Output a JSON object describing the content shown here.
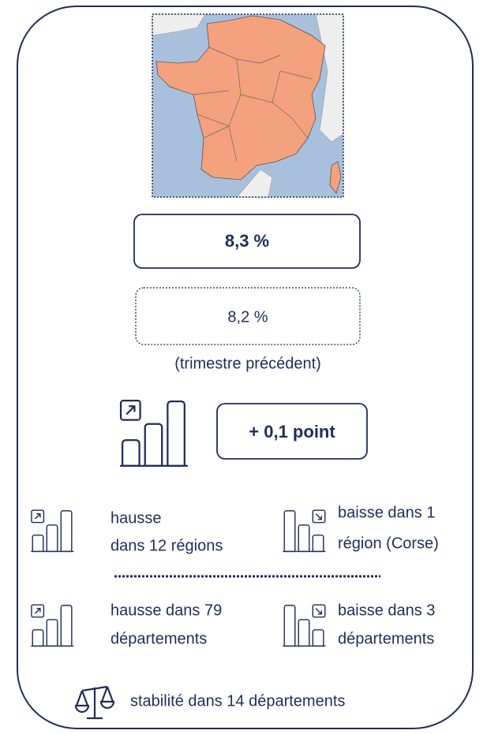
{
  "current_rate": "8,3 %",
  "previous_rate": {
    "value": "8,2 %",
    "note": "(trimestre précédent)"
  },
  "change": "+ 0,1 point",
  "regions": {
    "rise": [
      "hausse",
      "dans 12 régions"
    ],
    "fall": [
      "baisse dans 1",
      "région (Corse)"
    ]
  },
  "departments": {
    "rise": [
      "hausse dans 79",
      "départements"
    ],
    "fall": [
      "baisse dans 3",
      "départements"
    ],
    "stable": "stabilité dans 14 départements"
  }
}
